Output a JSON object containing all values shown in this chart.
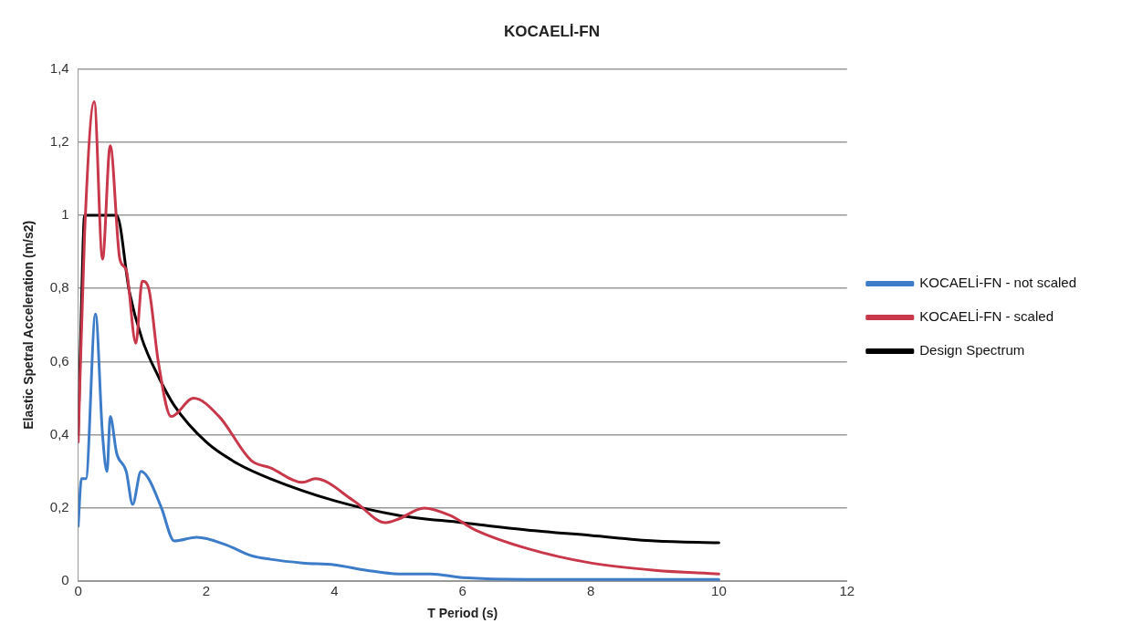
{
  "chart_data": {
    "type": "line",
    "title": "KOCAELİ-FN",
    "xlabel": "T Period (s)",
    "ylabel": "Elastic Spetral Acceleration (m/s2)",
    "xlim": [
      0,
      12
    ],
    "xticks": [
      0,
      2,
      4,
      6,
      8,
      10,
      12
    ],
    "ylim": [
      0,
      1.4
    ],
    "yticks": [
      0,
      {
        "value": 0.2,
        "label": "0,2"
      },
      {
        "value": 0.4,
        "label": "0,4"
      },
      {
        "value": 0.6,
        "label": "0,6"
      },
      {
        "value": 0.8,
        "label": "0,8"
      },
      1,
      {
        "value": 1.2,
        "label": "1,2"
      },
      {
        "value": 1.4,
        "label": "1,4"
      }
    ],
    "grid": "y",
    "legend": "right",
    "marker": "none",
    "line_style": "solid",
    "series": [
      {
        "name": "KOCAELİ-FN - not scaled",
        "color": "#3d7cc9",
        "x": [
          0,
          0.05,
          0.12,
          0.27,
          0.38,
          0.45,
          0.5,
          0.6,
          0.75,
          0.85,
          0.98,
          1.1,
          1.3,
          1.5,
          1.85,
          2.3,
          2.7,
          3,
          3.5,
          4,
          4.5,
          5,
          5.5,
          6,
          7,
          8,
          10
        ],
        "values": [
          0.15,
          0.28,
          0.28,
          0.73,
          0.4,
          0.3,
          0.45,
          0.35,
          0.3,
          0.21,
          0.3,
          0.28,
          0.2,
          0.11,
          0.12,
          0.1,
          0.07,
          0.06,
          0.05,
          0.045,
          0.03,
          0.02,
          0.02,
          0.01,
          0.005,
          0.005,
          0.005
        ]
      },
      {
        "name": "KOCAELİ-FN - scaled",
        "color": "#c8374a",
        "x": [
          0,
          0.1,
          0.25,
          0.38,
          0.5,
          0.65,
          0.75,
          0.9,
          1,
          1.1,
          1.25,
          1.45,
          1.8,
          2.2,
          2.7,
          3,
          3.5,
          3.7,
          4.3,
          4.8,
          5,
          5.4,
          5.8,
          6.2,
          7,
          8,
          9,
          10
        ],
        "values": [
          0.38,
          0.95,
          1.31,
          0.88,
          1.19,
          0.88,
          0.85,
          0.65,
          0.82,
          0.8,
          0.6,
          0.45,
          0.5,
          0.45,
          0.33,
          0.31,
          0.27,
          0.28,
          0.22,
          0.16,
          0.17,
          0.2,
          0.18,
          0.14,
          0.09,
          0.05,
          0.03,
          0.02
        ]
      },
      {
        "name": "Design Spectrum",
        "color": "#000000",
        "x": [
          0,
          0.05,
          0.1,
          0.6,
          0.8,
          1,
          1.25,
          1.5,
          2,
          2.5,
          3,
          4,
          5,
          6,
          7,
          8,
          9,
          10
        ],
        "values": [
          0.4,
          0.75,
          1,
          1,
          0.79,
          0.66,
          0.56,
          0.48,
          0.38,
          0.32,
          0.28,
          0.22,
          0.18,
          0.16,
          0.14,
          0.125,
          0.11,
          0.105
        ]
      }
    ]
  }
}
